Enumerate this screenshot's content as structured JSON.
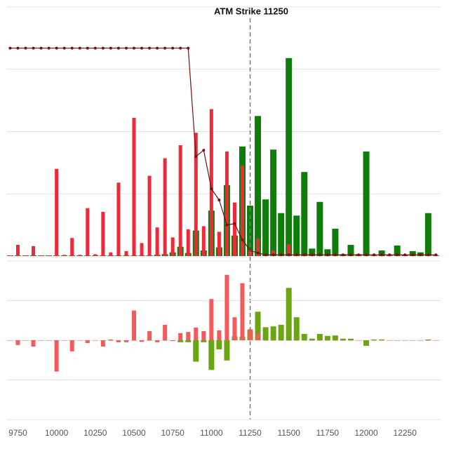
{
  "chart_data": [
    {
      "type": "bar",
      "annotation": {
        "label": "ATM Strike 11250",
        "x": 11250
      },
      "x": [
        9700,
        9750,
        9800,
        9850,
        9900,
        9950,
        10000,
        10050,
        10100,
        10150,
        10200,
        10250,
        10300,
        10350,
        10400,
        10450,
        10500,
        10550,
        10600,
        10650,
        10700,
        10750,
        10800,
        10850,
        10900,
        10950,
        11000,
        11050,
        11100,
        11150,
        11200,
        11250,
        11300,
        11350,
        11400,
        11450,
        11500,
        11550,
        11600,
        11650,
        11700,
        11750,
        11800,
        11850,
        11900,
        11950,
        12000,
        12050,
        12100,
        12150,
        12200,
        12250,
        12300,
        12350,
        12400,
        12450
      ],
      "xlim": [
        9680,
        12480
      ],
      "ylim": [
        0,
        4
      ],
      "yticks": [
        0,
        1,
        2,
        3,
        4
      ],
      "grid": true,
      "series": [
        {
          "type": "bar",
          "color": "#0e7d0a",
          "values": [
            0.01,
            0.01,
            0.01,
            0.01,
            0.01,
            0.01,
            0.01,
            0.01,
            0.01,
            0.01,
            0.01,
            0.01,
            0.01,
            0.01,
            0.01,
            0.01,
            0.01,
            0.01,
            0.01,
            0.02,
            0.03,
            0.06,
            0.15,
            0.05,
            0.41,
            0.09,
            0.73,
            0.14,
            1.14,
            0.33,
            1.76,
            0.81,
            2.25,
            0.91,
            1.71,
            0.69,
            3.18,
            0.65,
            1.35,
            0.12,
            0.87,
            0.11,
            0.44,
            0.03,
            0.18,
            0.03,
            1.68,
            0.01,
            0.09,
            0.01,
            0.17,
            0.02,
            0.08,
            0.06,
            0.69,
            0.01
          ]
        },
        {
          "type": "bar",
          "color": "#ee2a38",
          "values": [
            0.01,
            0.18,
            0.01,
            0.16,
            0.01,
            0.01,
            1.4,
            0.02,
            0.29,
            0.02,
            0.77,
            0.03,
            0.71,
            0.06,
            1.18,
            0.08,
            2.22,
            0.21,
            1.29,
            0.46,
            1.57,
            0.3,
            1.78,
            0.43,
            1.98,
            0.48,
            2.36,
            0.39,
            1.68,
            0.86,
            1.45,
            0.11,
            0.28,
            0.02,
            0.09,
            0.02,
            0.19,
            0.02,
            0.02,
            0.02,
            0.02,
            0.02,
            0.02,
            0.02,
            0.02,
            0.02,
            0.02,
            0.02,
            0.02,
            0.02,
            0.02,
            0.02,
            0.02,
            0.02,
            0.02,
            0.02
          ]
        },
        {
          "type": "line",
          "color": "#7a0f0f",
          "values": [
            3.34,
            3.34,
            3.34,
            3.34,
            3.34,
            3.34,
            3.34,
            3.34,
            3.34,
            3.34,
            3.34,
            3.34,
            3.34,
            3.34,
            3.34,
            3.34,
            3.34,
            3.34,
            3.34,
            3.34,
            3.34,
            3.34,
            3.34,
            3.34,
            1.6,
            1.7,
            1.08,
            0.9,
            0.5,
            0.52,
            0.26,
            0.09,
            0.05,
            0.02,
            0.02,
            0.02,
            0.02,
            0.02,
            0.02,
            0.02,
            0.02,
            0.02,
            0.02,
            0.02,
            0.02,
            0.02,
            0.02,
            0.02,
            0.02,
            0.02,
            0.02,
            0.02,
            0.02,
            0.02,
            0.02,
            0.02
          ]
        }
      ]
    },
    {
      "type": "bar",
      "x": [
        9700,
        9750,
        9800,
        9850,
        9900,
        9950,
        10000,
        10050,
        10100,
        10150,
        10200,
        10250,
        10300,
        10350,
        10400,
        10450,
        10500,
        10550,
        10600,
        10650,
        10700,
        10750,
        10800,
        10850,
        10900,
        10950,
        11000,
        11050,
        11100,
        11150,
        11200,
        11250,
        11300,
        11350,
        11400,
        11450,
        11500,
        11550,
        11600,
        11650,
        11700,
        11750,
        11800,
        11850,
        11900,
        11950,
        12000,
        12050,
        12100,
        12150,
        12200,
        12250,
        12300,
        12350,
        12400,
        12450
      ],
      "xlim": [
        9680,
        12480
      ],
      "xticks": [
        9750,
        10000,
        10250,
        10500,
        10750,
        11000,
        11250,
        11500,
        11750,
        12000,
        12250
      ],
      "ylim": [
        -2,
        2
      ],
      "yticks": [
        -2,
        -1,
        0,
        1,
        2
      ],
      "grid": true,
      "series": [
        {
          "type": "bar",
          "color": "#6aa512",
          "values": [
            0,
            0,
            0,
            0,
            0,
            0,
            0,
            0,
            0,
            0,
            0,
            0,
            0,
            0,
            0,
            0,
            0,
            0,
            0,
            0,
            0,
            0,
            -0.05,
            -0.05,
            -0.54,
            -0.05,
            -0.75,
            -0.23,
            -0.51,
            0.1,
            0.09,
            0.26,
            0.72,
            0.33,
            0.35,
            0.39,
            1.32,
            0.58,
            0.16,
            0.04,
            0.16,
            0.11,
            0.12,
            0.04,
            0.04,
            0,
            -0.14,
            0.02,
            0.02,
            0,
            0,
            0,
            0,
            0,
            0.02,
            0
          ]
        },
        {
          "type": "bar",
          "color": "#f45a5a",
          "values": [
            0,
            -0.12,
            0,
            -0.16,
            0,
            0,
            -0.79,
            0,
            -0.28,
            0,
            -0.07,
            0,
            -0.16,
            0.02,
            -0.05,
            -0.05,
            0.75,
            -0.04,
            0.23,
            -0.05,
            0.39,
            -0.02,
            0.18,
            0.21,
            0.32,
            0.23,
            1.04,
            0.25,
            1.65,
            0.58,
            1.44,
            0.28,
            0.18,
            0,
            0,
            0,
            0,
            0,
            0,
            0,
            0,
            0,
            0,
            0,
            0,
            0,
            0,
            0,
            0,
            0,
            0,
            0,
            0,
            0,
            0,
            0
          ]
        }
      ]
    }
  ]
}
